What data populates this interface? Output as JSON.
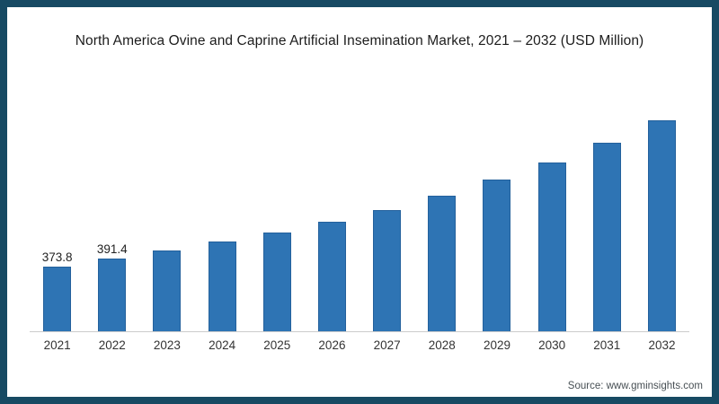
{
  "frame": {
    "border_color": "#174a63",
    "background_color": "#ffffff"
  },
  "source": "Source: www.gminsights.com",
  "chart_data": {
    "type": "bar",
    "title": "North America Ovine and Caprine Artificial Insemination Market, 2021 – 2032 (USD Million)",
    "xlabel": "",
    "ylabel": "",
    "categories": [
      "2021",
      "2022",
      "2023",
      "2024",
      "2025",
      "2026",
      "2027",
      "2028",
      "2029",
      "2030",
      "2031",
      "2032"
    ],
    "values": [
      373.8,
      391.4,
      409.8,
      430.4,
      449.0,
      473.1,
      499.3,
      529.3,
      564.6,
      602.4,
      644.9,
      695.2
    ],
    "data_labels": [
      "373.8",
      "391.4",
      "",
      "",
      "",
      "",
      "",
      "",
      "",
      "",
      "",
      ""
    ],
    "ylim": [
      233,
      742
    ],
    "grid": false,
    "legend": false,
    "bar_color": "#2e74b4",
    "bar_edge_color": "#24619c",
    "axis_line_color": "#cccccc",
    "data_label_color": "#222222",
    "tick_label_color": "#333333"
  }
}
